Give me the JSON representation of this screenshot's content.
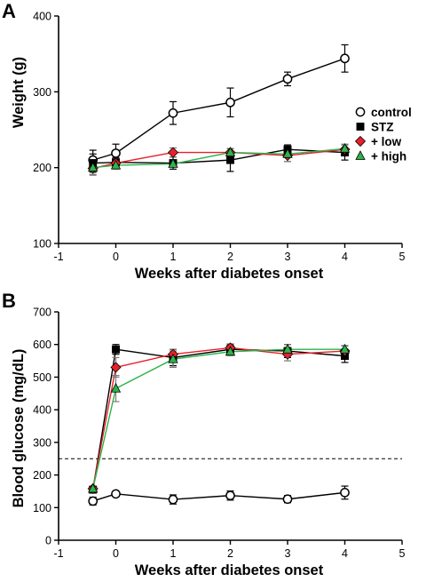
{
  "chart_data": [
    {
      "panel": "A",
      "type": "line",
      "title": "",
      "xlabel": "Weeks after diabetes onset",
      "ylabel": "Weight (g)",
      "xlim": [
        -1,
        5
      ],
      "ylim": [
        100,
        400
      ],
      "xticks": [
        "-1",
        "0",
        "1",
        "2",
        "3",
        "4",
        "5"
      ],
      "yticks": [
        "100",
        "200",
        "300",
        "400"
      ],
      "x": [
        -0.4,
        0,
        1,
        2,
        3,
        4
      ],
      "series": [
        {
          "name": "control",
          "color": "#000000",
          "marker": "circle-open",
          "values": [
            210,
            219,
            272,
            286,
            317,
            344
          ],
          "errors": [
            13,
            12,
            15,
            19,
            9,
            18
          ]
        },
        {
          "name": "STZ",
          "color": "#000000",
          "marker": "square",
          "values": [
            206,
            207,
            206,
            210,
            224,
            220
          ],
          "errors": [
            12,
            6,
            8,
            15,
            6,
            10
          ]
        },
        {
          "name": "+ low",
          "color": "#e8202a",
          "marker": "diamond",
          "values": [
            199,
            206,
            220,
            220,
            216,
            224
          ],
          "errors": [
            8,
            6,
            6,
            5,
            8,
            7
          ]
        },
        {
          "name": "+ high",
          "color": "#2db34a",
          "marker": "triangle",
          "values": [
            200,
            203,
            205,
            220,
            218,
            225
          ],
          "errors": [
            10,
            5,
            4,
            5,
            10,
            5
          ]
        }
      ],
      "legend_position": "right"
    },
    {
      "panel": "B",
      "type": "line",
      "title": "",
      "xlabel": "Weeks after diabetes onset",
      "ylabel": "Blood glucose (mg/dL)",
      "xlim": [
        -1,
        5
      ],
      "ylim": [
        0,
        700
      ],
      "xticks": [
        "-1",
        "0",
        "1",
        "2",
        "3",
        "4",
        "5"
      ],
      "yticks": [
        "0",
        "100",
        "200",
        "300",
        "400",
        "500",
        "600",
        "700"
      ],
      "x": [
        -0.4,
        0,
        1,
        2,
        3,
        4
      ],
      "threshold": 250,
      "series": [
        {
          "name": "control",
          "color": "#000000",
          "marker": "circle-open",
          "values": [
            120,
            142,
            125,
            137,
            126,
            146
          ],
          "errors": [
            12,
            6,
            14,
            14,
            11,
            20
          ]
        },
        {
          "name": "STZ",
          "color": "#000000",
          "marker": "square",
          "values": [
            155,
            585,
            560,
            585,
            580,
            565
          ],
          "errors": [
            6,
            15,
            25,
            15,
            20,
            20
          ]
        },
        {
          "name": "+ low",
          "color": "#e8202a",
          "marker": "diamond",
          "values": [
            158,
            530,
            570,
            590,
            570,
            580
          ],
          "errors": [
            6,
            30,
            15,
            12,
            20,
            15
          ]
        },
        {
          "name": "+ high",
          "color": "#2db34a",
          "marker": "triangle",
          "values": [
            158,
            465,
            555,
            578,
            585,
            585
          ],
          "errors": [
            6,
            40,
            25,
            12,
            15,
            12
          ]
        }
      ]
    }
  ]
}
